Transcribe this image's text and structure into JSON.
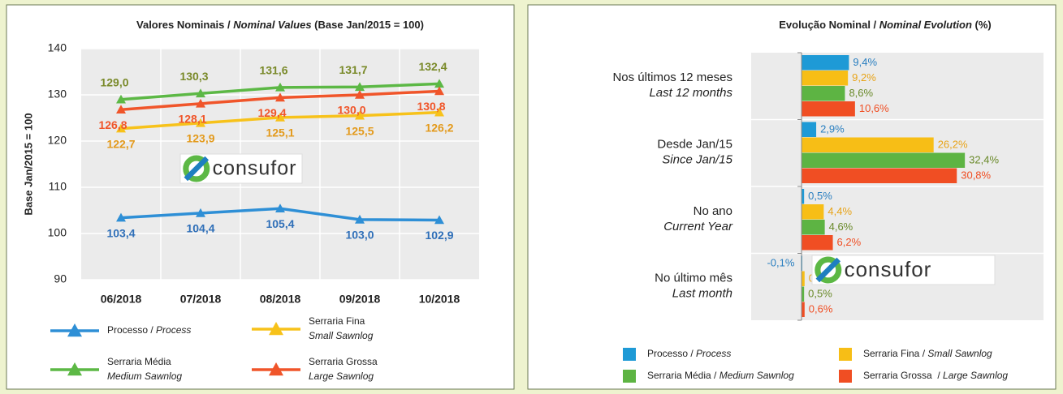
{
  "logo": "consufor",
  "chart_data": [
    {
      "type": "line",
      "title": [
        "Valores Nominais / ",
        "Nominal Values",
        " (Base Jan/2015 = 100)"
      ],
      "ylabel": "Base Jan/2015 = 100",
      "categories": [
        "06/2018",
        "07/2018",
        "08/2018",
        "09/2018",
        "10/2018"
      ],
      "ylim": [
        90,
        140
      ],
      "yticks": [
        90,
        100,
        110,
        120,
        130,
        140
      ],
      "grid": true,
      "series": [
        {
          "name": [
            "Processo / ",
            "Process"
          ],
          "color": "#2e8fd6",
          "label_color": "#2f6fb8",
          "values": [
            103.4,
            104.4,
            105.4,
            103.0,
            102.9
          ],
          "value_labels": [
            "103,4",
            "104,4",
            "105,4",
            "103,0",
            "102,9"
          ]
        },
        {
          "name": [
            "Serraria Fina",
            "Small Sawnlog"
          ],
          "color": "#f7c21a",
          "label_color": "#e39a1c",
          "values": [
            122.7,
            123.9,
            125.1,
            125.5,
            126.2
          ],
          "value_labels": [
            "122,7",
            "123,9",
            "125,1",
            "125,5",
            "126,2"
          ]
        },
        {
          "name": [
            "Serraria Média",
            "Medium Sawnlog"
          ],
          "color": "#5cb845",
          "label_color": "#7a8a2a",
          "values": [
            129.0,
            130.3,
            131.6,
            131.7,
            132.4
          ],
          "value_labels": [
            "129,0",
            "130,3",
            "131,6",
            "131,7",
            "132,4"
          ]
        },
        {
          "name": [
            "Serraria Grossa",
            "Large Sawnlog"
          ],
          "color": "#f0552a",
          "label_color": "#f0552a",
          "values": [
            126.8,
            128.1,
            129.4,
            130.0,
            130.8
          ],
          "value_labels": [
            "126,8",
            "128,1",
            "129,4",
            "130,0",
            "130,8"
          ]
        }
      ]
    },
    {
      "type": "hbar",
      "title": [
        "Evolução Nominal / ",
        "Nominal Evolution",
        " (%)"
      ],
      "categories": [
        "Nos últimos 12 meses",
        "Desde Jan/15",
        "No ano",
        "No último mês"
      ],
      "categories_en": [
        "Last 12 months",
        "Since Jan/15",
        "Current Year",
        "Last month"
      ],
      "xlim": [
        -10,
        48
      ],
      "series": [
        {
          "name": [
            "Processo / ",
            "Process"
          ],
          "color": "#1e9ad6",
          "label_color": "#2a7fc0",
          "values": [
            9.4,
            2.9,
            0.5,
            -0.1
          ],
          "value_labels": [
            "9,4%",
            "2,9%",
            "0,5%",
            "-0,1%"
          ]
        },
        {
          "name": [
            "Serraria Fina / ",
            "Small Sawnlog"
          ],
          "color": "#f7be16",
          "label_color": "#e8a317",
          "values": [
            9.2,
            26.2,
            4.4,
            0.6
          ],
          "value_labels": [
            "9,2%",
            "26,2%",
            "4,4%",
            "0,6%"
          ]
        },
        {
          "name": [
            "Serraria Média / ",
            "Medium Sawnlog"
          ],
          "color": "#5db443",
          "label_color": "#6a8a2a",
          "values": [
            8.6,
            32.4,
            4.6,
            0.5
          ],
          "value_labels": [
            "8,6%",
            "32,4%",
            "4,6%",
            "0,5%"
          ]
        },
        {
          "name": [
            "Serraria Grossa  / ",
            "Large Sawnlog"
          ],
          "color": "#f04e23",
          "label_color": "#f04e23",
          "values": [
            10.6,
            30.8,
            6.2,
            0.6
          ],
          "value_labels": [
            "10,6%",
            "30,8%",
            "6,2%",
            "0,6%"
          ]
        }
      ]
    }
  ]
}
